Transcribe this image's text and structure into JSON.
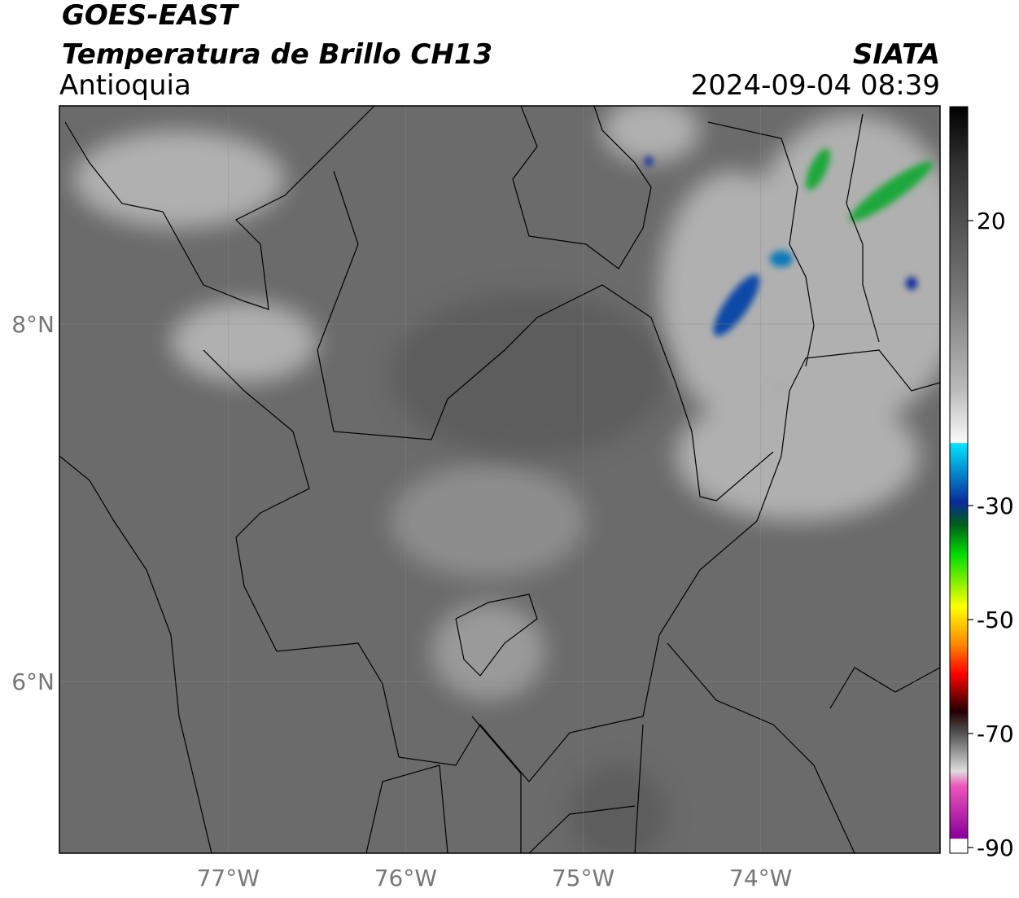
{
  "chart_data": {
    "type": "map",
    "title": "GOES-EAST",
    "subtitle": "Temperatura de Brillo CH13",
    "region": "Antioquia",
    "source": "SIATA",
    "datetime": "2024-09-04 08:39",
    "xlim": [
      -77.95,
      -72.99
    ],
    "ylim": [
      5.04,
      9.22
    ],
    "xticks": [
      {
        "value": -77,
        "label": "77°W"
      },
      {
        "value": -76,
        "label": "76°W"
      },
      {
        "value": -75,
        "label": "75°W"
      },
      {
        "value": -74,
        "label": "74°W"
      }
    ],
    "yticks": [
      {
        "value": 6,
        "label": "6°N"
      },
      {
        "value": 8,
        "label": "8°N"
      }
    ],
    "grid": true,
    "colorbar": {
      "lim": [
        -91,
        40
      ],
      "ticks": [
        20,
        -30,
        -50,
        -70,
        -90
      ]
    }
  }
}
